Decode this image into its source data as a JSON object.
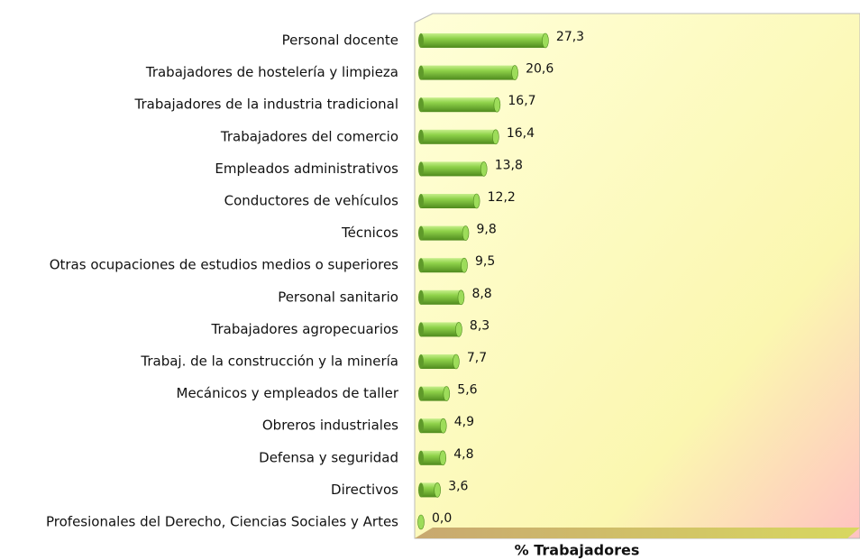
{
  "chart_data": {
    "type": "bar",
    "orientation": "horizontal",
    "x_label": "% Trabajadores",
    "categories": [
      "Personal docente",
      "Trabajadores de hostelería y limpieza",
      "Trabajadores de la industria tradicional",
      "Trabajadores del comercio",
      "Empleados administrativos",
      "Conductores de vehículos",
      "Técnicos",
      "Otras ocupaciones de estudios medios o superiores",
      "Personal sanitario",
      "Trabajadores agropecuarios",
      "Trabaj. de la construcción y la minería",
      "Mecánicos y empleados de taller",
      "Obreros industriales",
      "Defensa y seguridad",
      "Directivos",
      "Profesionales del Derecho, Ciencias Sociales y Artes"
    ],
    "values": [
      27.3,
      20.6,
      16.7,
      16.4,
      13.8,
      12.2,
      9.8,
      9.5,
      8.8,
      8.3,
      7.7,
      5.6,
      4.9,
      4.8,
      3.6,
      0.0
    ],
    "value_labels": [
      "27,3",
      "20,6",
      "16,7",
      "16,4",
      "13,8",
      "12,2",
      "9,8",
      "9,5",
      "8,8",
      "8,3",
      "7,7",
      "5,6",
      "4,9",
      "4,8",
      "3,6",
      "0,0"
    ],
    "color": "#7dc23a",
    "xlim": [
      0,
      95
    ]
  }
}
